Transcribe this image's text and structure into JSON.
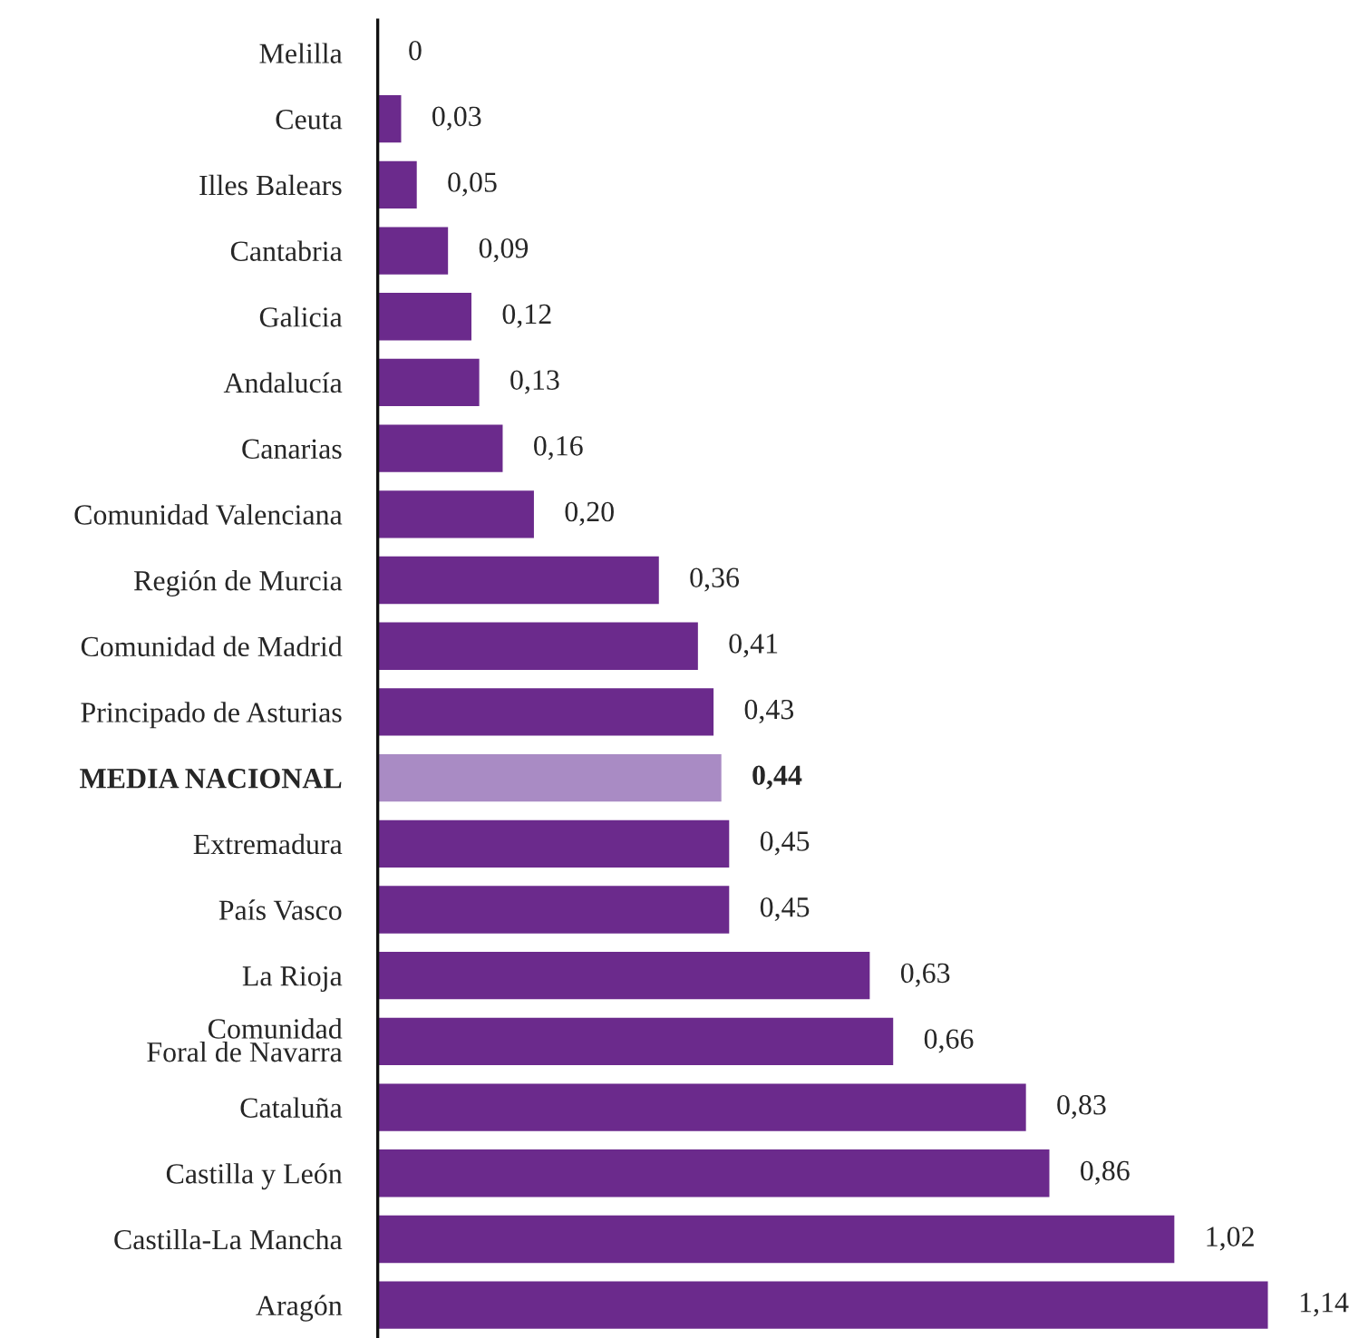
{
  "chart_data": {
    "type": "bar",
    "orientation": "horizontal",
    "categories": [
      "Melilla",
      "Ceuta",
      "Illes Balears",
      "Cantabria",
      "Galicia",
      "Andalucía",
      "Canarias",
      "Comunidad Valenciana",
      "Región de Murcia",
      "Comunidad de Madrid",
      "Principado de Asturias",
      "MEDIA NACIONAL",
      "Extremadura",
      "País Vasco",
      "La Rioja",
      "Comunidad\nForal de Navarra",
      "Cataluña",
      "Castilla y León",
      "Castilla-La Mancha",
      "Aragón"
    ],
    "values": [
      0,
      0.03,
      0.05,
      0.09,
      0.12,
      0.13,
      0.16,
      0.2,
      0.36,
      0.41,
      0.43,
      0.44,
      0.45,
      0.45,
      0.63,
      0.66,
      0.83,
      0.86,
      1.02,
      1.14
    ],
    "value_labels": [
      "0",
      "0,03",
      "0,05",
      "0,09",
      "0,12",
      "0,13",
      "0,16",
      "0,20",
      "0,36",
      "0,41",
      "0,43",
      "0,44",
      "0,45",
      "0,45",
      "0,63",
      "0,66",
      "0,83",
      "0,86",
      "1,02",
      "1,14"
    ],
    "colors": [
      "#6b2a8c",
      "#6b2a8c",
      "#6b2a8c",
      "#6b2a8c",
      "#6b2a8c",
      "#6b2a8c",
      "#6b2a8c",
      "#6b2a8c",
      "#6b2a8c",
      "#6b2a8c",
      "#6b2a8c",
      "#a98bc4",
      "#6b2a8c",
      "#6b2a8c",
      "#6b2a8c",
      "#6b2a8c",
      "#6b2a8c",
      "#6b2a8c",
      "#6b2a8c",
      "#6b2a8c"
    ],
    "grid": false,
    "legend": false
  }
}
